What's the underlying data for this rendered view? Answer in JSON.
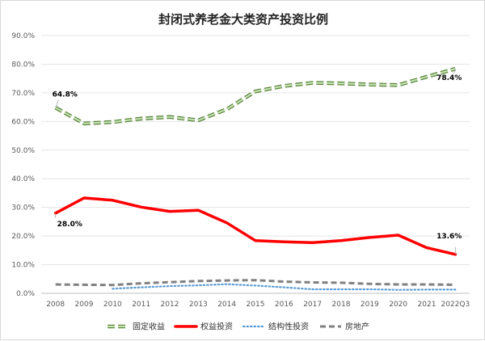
{
  "chart_data": {
    "type": "line",
    "title": "封闭式养老金大类资产投资比例",
    "categories": [
      "2008",
      "2009",
      "2010",
      "2011",
      "2012",
      "2013",
      "2014",
      "2015",
      "2016",
      "2017",
      "2018",
      "2019",
      "2020",
      "2021",
      "2022Q3"
    ],
    "ylim": [
      0,
      90
    ],
    "yticks": [
      "0.0%",
      "10.0%",
      "20.0%",
      "30.0%",
      "40.0%",
      "50.0%",
      "60.0%",
      "70.0%",
      "80.0%",
      "90.0%"
    ],
    "grid": true,
    "legend_position": "bottom",
    "series": [
      {
        "name": "固定收益",
        "values": [
          64.8,
          59.3,
          59.8,
          61.0,
          61.6,
          60.4,
          64.3,
          70.5,
          72.4,
          73.5,
          73.3,
          72.9,
          72.7,
          75.6,
          78.4
        ],
        "color": "#70a845",
        "style": "dashed-green"
      },
      {
        "name": "权益投资",
        "values": [
          28.0,
          33.3,
          32.5,
          30.1,
          28.6,
          29.0,
          24.6,
          18.4,
          18.0,
          17.7,
          18.4,
          19.5,
          20.3,
          15.9,
          13.6
        ],
        "color": "#ff0000",
        "style": "solid"
      },
      {
        "name": "结构性投资",
        "values": [
          null,
          null,
          1.6,
          2.1,
          2.5,
          2.8,
          3.2,
          2.7,
          2.1,
          1.4,
          1.4,
          1.4,
          1.2,
          1.3,
          1.3
        ],
        "color": "#5b9bd5",
        "style": "dotted"
      },
      {
        "name": "房地产",
        "values": [
          3.1,
          3.0,
          2.9,
          3.5,
          3.9,
          4.3,
          4.5,
          4.6,
          4.1,
          3.8,
          3.7,
          3.3,
          3.1,
          3.1,
          3.0
        ],
        "color": "#808080",
        "style": "dashed"
      }
    ],
    "annotations": [
      {
        "series": 0,
        "index": 0,
        "text": "64.8%"
      },
      {
        "series": 0,
        "index": 14,
        "text": "78.4%"
      },
      {
        "series": 1,
        "index": 0,
        "text": "28.0%"
      },
      {
        "series": 1,
        "index": 14,
        "text": "13.6%"
      }
    ]
  }
}
